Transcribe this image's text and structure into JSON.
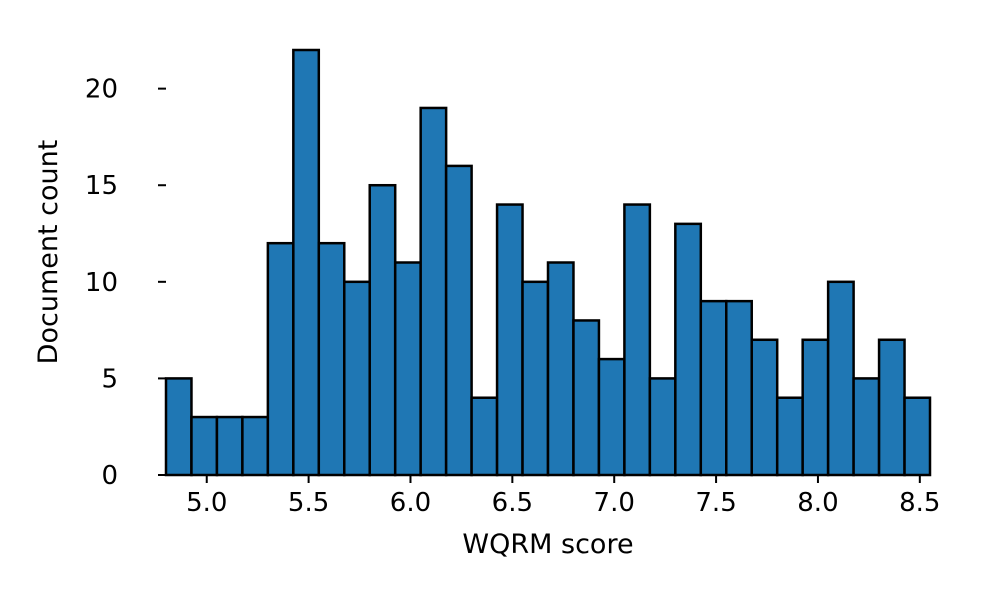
{
  "chart_data": {
    "type": "bar",
    "subtype": "histogram",
    "title": "",
    "xlabel": "WQRM score",
    "ylabel": "Document count",
    "bin_start": 4.8,
    "bin_width": 0.125,
    "values": [
      5,
      3,
      3,
      3,
      12,
      22,
      12,
      10,
      15,
      11,
      19,
      16,
      4,
      14,
      10,
      11,
      8,
      6,
      14,
      5,
      13,
      9,
      9,
      7,
      4,
      7,
      10,
      5,
      7,
      4
    ],
    "xlim": [
      4.8,
      8.55
    ],
    "ylim": [
      0,
      22
    ],
    "xticks": [
      5.0,
      5.5,
      6.0,
      6.5,
      7.0,
      7.5,
      8.0,
      8.5
    ],
    "xtick_labels": [
      "5.0",
      "5.5",
      "6.0",
      "6.5",
      "7.0",
      "7.5",
      "8.0",
      "8.5"
    ],
    "yticks": [
      0,
      5,
      10,
      15,
      20
    ],
    "ytick_labels": [
      "0",
      "5",
      "10",
      "15",
      "20"
    ],
    "grid": false,
    "legend": "none",
    "colors": {
      "bar_fill": "#1f77b4",
      "bar_edge": "#000000"
    }
  }
}
